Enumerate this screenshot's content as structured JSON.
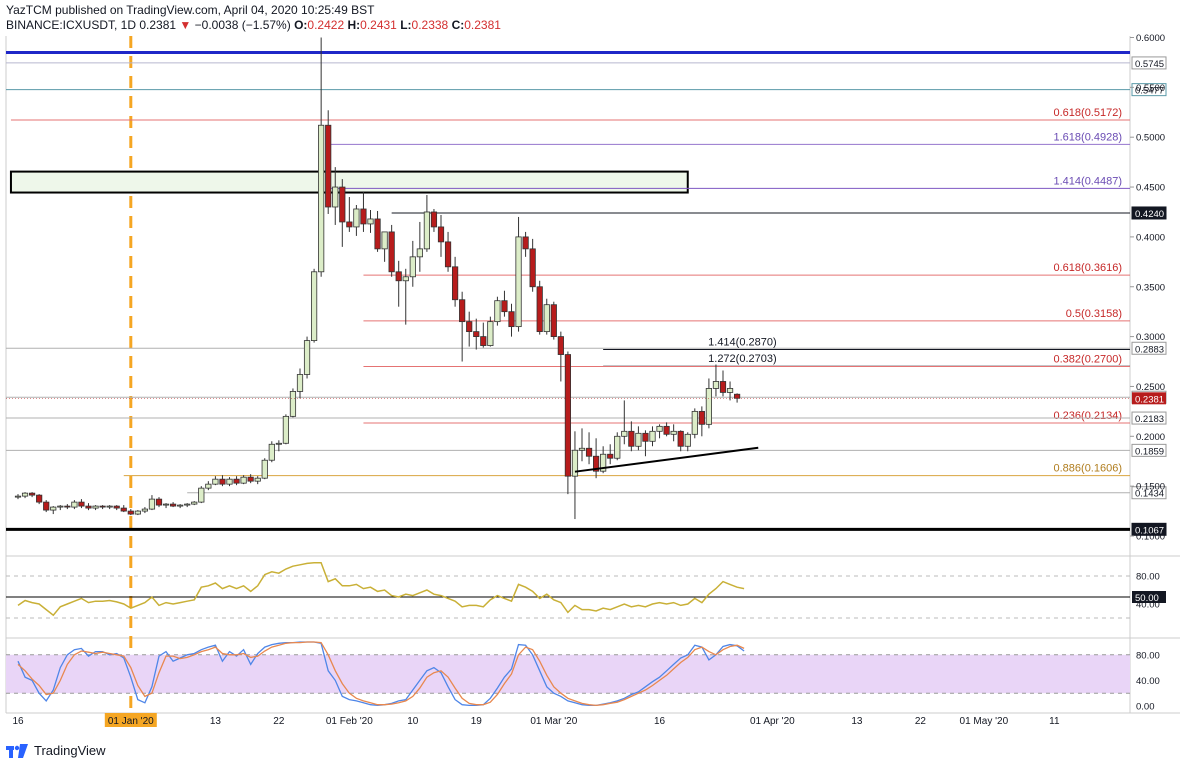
{
  "header": {
    "line1": "YazTCM published on TradingView.com, April 04, 2020 10:25:49 BST",
    "symbol": "BINANCE:ICXUSDT, 1D",
    "last": "0.2381",
    "change": "−0.0038 (−1.57%)",
    "o_label": "O:",
    "o": "0.2422",
    "h_label": "H:",
    "h": "0.2431",
    "l_label": "L:",
    "l": "0.2338",
    "c_label": "C:",
    "c": "0.2381"
  },
  "footer": {
    "brand": "TradingView"
  },
  "chart_data": {
    "type": "candlestick",
    "price_axis_ticks": [
      0.1,
      0.15,
      0.2,
      0.25,
      0.3,
      0.35,
      0.4,
      0.45,
      0.5,
      0.55,
      0.6
    ],
    "price_axis_labels": [
      "0.1000",
      "0.1500",
      "0.2000",
      "0.2500",
      "0.3000",
      "0.3500",
      "0.4000",
      "0.4500",
      "0.5000",
      "0.5500",
      "0.6000"
    ],
    "x_ticks": [
      {
        "label": "16",
        "day": 0
      },
      {
        "label": "01 Jan '20",
        "day": 16,
        "highlight": true
      },
      {
        "label": "13",
        "day": 28
      },
      {
        "label": "22",
        "day": 37
      },
      {
        "label": "01 Feb '20",
        "day": 47
      },
      {
        "label": "10",
        "day": 56
      },
      {
        "label": "19",
        "day": 65
      },
      {
        "label": "01 Mar '20",
        "day": 76
      },
      {
        "label": "16",
        "day": 91
      },
      {
        "label": "01 Apr '20",
        "day": 107
      },
      {
        "label": "13",
        "day": 119
      },
      {
        "label": "22",
        "day": 128
      },
      {
        "label": "01 May '20",
        "day": 137
      },
      {
        "label": "11",
        "day": 147
      }
    ],
    "candles": [
      [
        0.14,
        0.142,
        0.137,
        0.14
      ],
      [
        0.14,
        0.144,
        0.138,
        0.143
      ],
      [
        0.143,
        0.144,
        0.139,
        0.141
      ],
      [
        0.141,
        0.142,
        0.132,
        0.134
      ],
      [
        0.134,
        0.136,
        0.124,
        0.126
      ],
      [
        0.126,
        0.13,
        0.122,
        0.129
      ],
      [
        0.129,
        0.131,
        0.126,
        0.13
      ],
      [
        0.13,
        0.132,
        0.127,
        0.129
      ],
      [
        0.129,
        0.136,
        0.127,
        0.134
      ],
      [
        0.134,
        0.137,
        0.128,
        0.13
      ],
      [
        0.13,
        0.133,
        0.126,
        0.128
      ],
      [
        0.128,
        0.131,
        0.126,
        0.13
      ],
      [
        0.13,
        0.131,
        0.127,
        0.129
      ],
      [
        0.129,
        0.131,
        0.127,
        0.13
      ],
      [
        0.13,
        0.131,
        0.126,
        0.128
      ],
      [
        0.128,
        0.131,
        0.124,
        0.125
      ],
      [
        0.125,
        0.127,
        0.121,
        0.122
      ],
      [
        0.122,
        0.126,
        0.121,
        0.125
      ],
      [
        0.125,
        0.129,
        0.123,
        0.127
      ],
      [
        0.127,
        0.141,
        0.126,
        0.137
      ],
      [
        0.137,
        0.139,
        0.129,
        0.131
      ],
      [
        0.131,
        0.133,
        0.128,
        0.132
      ],
      [
        0.132,
        0.134,
        0.129,
        0.13
      ],
      [
        0.13,
        0.132,
        0.128,
        0.131
      ],
      [
        0.131,
        0.133,
        0.129,
        0.132
      ],
      [
        0.132,
        0.135,
        0.131,
        0.134
      ],
      [
        0.134,
        0.15,
        0.133,
        0.148
      ],
      [
        0.148,
        0.155,
        0.146,
        0.152
      ],
      [
        0.152,
        0.16,
        0.151,
        0.157
      ],
      [
        0.157,
        0.161,
        0.15,
        0.152
      ],
      [
        0.152,
        0.159,
        0.15,
        0.157
      ],
      [
        0.157,
        0.16,
        0.151,
        0.153
      ],
      [
        0.153,
        0.161,
        0.152,
        0.159
      ],
      [
        0.159,
        0.162,
        0.153,
        0.155
      ],
      [
        0.155,
        0.16,
        0.152,
        0.158
      ],
      [
        0.158,
        0.178,
        0.157,
        0.176
      ],
      [
        0.176,
        0.195,
        0.174,
        0.192
      ],
      [
        0.192,
        0.196,
        0.185,
        0.193
      ],
      [
        0.193,
        0.222,
        0.192,
        0.22
      ],
      [
        0.22,
        0.248,
        0.219,
        0.245
      ],
      [
        0.245,
        0.268,
        0.238,
        0.262
      ],
      [
        0.262,
        0.3,
        0.258,
        0.296
      ],
      [
        0.296,
        0.368,
        0.294,
        0.365
      ],
      [
        0.365,
        0.6,
        0.36,
        0.512
      ],
      [
        0.512,
        0.527,
        0.423,
        0.43
      ],
      [
        0.43,
        0.47,
        0.412,
        0.45
      ],
      [
        0.45,
        0.458,
        0.39,
        0.415
      ],
      [
        0.415,
        0.44,
        0.405,
        0.41
      ],
      [
        0.41,
        0.432,
        0.401,
        0.428
      ],
      [
        0.428,
        0.445,
        0.405,
        0.413
      ],
      [
        0.413,
        0.427,
        0.404,
        0.418
      ],
      [
        0.418,
        0.426,
        0.385,
        0.388
      ],
      [
        0.388,
        0.405,
        0.375,
        0.405
      ],
      [
        0.405,
        0.412,
        0.36,
        0.365
      ],
      [
        0.365,
        0.376,
        0.33,
        0.356
      ],
      [
        0.356,
        0.368,
        0.312,
        0.36
      ],
      [
        0.36,
        0.396,
        0.35,
        0.38
      ],
      [
        0.38,
        0.415,
        0.365,
        0.388
      ],
      [
        0.388,
        0.442,
        0.385,
        0.425
      ],
      [
        0.425,
        0.428,
        0.405,
        0.41
      ],
      [
        0.41,
        0.422,
        0.38,
        0.395
      ],
      [
        0.395,
        0.405,
        0.365,
        0.37
      ],
      [
        0.37,
        0.38,
        0.33,
        0.337
      ],
      [
        0.337,
        0.345,
        0.275,
        0.315
      ],
      [
        0.315,
        0.325,
        0.29,
        0.305
      ],
      [
        0.305,
        0.318,
        0.287,
        0.3
      ],
      [
        0.3,
        0.314,
        0.289,
        0.291
      ],
      [
        0.291,
        0.32,
        0.29,
        0.315
      ],
      [
        0.315,
        0.34,
        0.311,
        0.336
      ],
      [
        0.336,
        0.346,
        0.32,
        0.325
      ],
      [
        0.325,
        0.333,
        0.3,
        0.31
      ],
      [
        0.31,
        0.42,
        0.305,
        0.4
      ],
      [
        0.4,
        0.405,
        0.38,
        0.388
      ],
      [
        0.388,
        0.398,
        0.345,
        0.35
      ],
      [
        0.35,
        0.356,
        0.302,
        0.305
      ],
      [
        0.305,
        0.338,
        0.302,
        0.332
      ],
      [
        0.332,
        0.335,
        0.297,
        0.3
      ],
      [
        0.3,
        0.305,
        0.255,
        0.282
      ],
      [
        0.282,
        0.285,
        0.142,
        0.16
      ],
      [
        0.16,
        0.205,
        0.117,
        0.186
      ],
      [
        0.186,
        0.208,
        0.175,
        0.188
      ],
      [
        0.188,
        0.204,
        0.172,
        0.18
      ],
      [
        0.18,
        0.198,
        0.158,
        0.165
      ],
      [
        0.165,
        0.19,
        0.163,
        0.182
      ],
      [
        0.182,
        0.192,
        0.172,
        0.178
      ],
      [
        0.178,
        0.204,
        0.176,
        0.2
      ],
      [
        0.2,
        0.236,
        0.192,
        0.205
      ],
      [
        0.205,
        0.215,
        0.185,
        0.19
      ],
      [
        0.19,
        0.21,
        0.186,
        0.203
      ],
      [
        0.203,
        0.206,
        0.18,
        0.195
      ],
      [
        0.195,
        0.21,
        0.19,
        0.205
      ],
      [
        0.205,
        0.212,
        0.198,
        0.21
      ],
      [
        0.21,
        0.214,
        0.2,
        0.202
      ],
      [
        0.202,
        0.212,
        0.195,
        0.205
      ],
      [
        0.205,
        0.206,
        0.185,
        0.19
      ],
      [
        0.19,
        0.204,
        0.185,
        0.202
      ],
      [
        0.202,
        0.228,
        0.198,
        0.225
      ],
      [
        0.225,
        0.23,
        0.2,
        0.212
      ],
      [
        0.212,
        0.258,
        0.208,
        0.248
      ],
      [
        0.248,
        0.272,
        0.24,
        0.255
      ],
      [
        0.255,
        0.266,
        0.24,
        0.244
      ],
      [
        0.244,
        0.255,
        0.236,
        0.248
      ],
      [
        0.2422,
        0.2431,
        0.2338,
        0.2381
      ]
    ],
    "horizontal_lines": [
      {
        "price": 0.585,
        "color": "#1f27c8",
        "width": 3
      },
      {
        "price": 0.5745,
        "color": "#b7b7cf",
        "width": 1,
        "label": "0.5745",
        "tag_bg": "#ffffff",
        "tag_fg": "#131722",
        "tag_border": "#999999"
      },
      {
        "price": 0.5477,
        "color": "#5a9aa8",
        "width": 1,
        "label": "0.5477",
        "tag_bg": "#ffffff",
        "tag_fg": "#131722",
        "tag_border": "#5a9aa8"
      },
      {
        "price": 0.5172,
        "color": "#e57373",
        "width": 1,
        "from_day": -1,
        "text": "0.618(0.5172)",
        "text_color": "#c62828"
      },
      {
        "price": 0.4928,
        "color": "#9575cd",
        "width": 1,
        "from_day": 44,
        "text": "1.618(0.4928)",
        "text_color": "#6a4bb3"
      },
      {
        "price": 0.4487,
        "color": "#7e57c2",
        "width": 1,
        "from_day": 44,
        "text": "1.414(0.4487)",
        "text_color": "#6a4bb3"
      },
      {
        "price": 0.424,
        "color": "#131722",
        "width": 1,
        "from_day": 53,
        "label": "0.4240",
        "tag_bg": "#131722",
        "tag_fg": "#ffffff"
      },
      {
        "price": 0.3616,
        "color": "#e57373",
        "width": 1,
        "from_day": 49,
        "text": "0.618(0.3616)",
        "text_color": "#c62828"
      },
      {
        "price": 0.3158,
        "color": "#e57373",
        "width": 1,
        "from_day": 49,
        "text": "0.5(0.3158)",
        "text_color": "#c62828"
      },
      {
        "price": 0.2883,
        "color": "#b0b0b0",
        "width": 1,
        "label": "0.2883",
        "tag_bg": "#ffffff",
        "tag_fg": "#131722",
        "tag_border": "#999999"
      },
      {
        "price": 0.287,
        "color": "#131722",
        "width": 1,
        "from_day": 83,
        "text_left": "1.414(0.2870)"
      },
      {
        "price": 0.2703,
        "color": "#131722",
        "width": 1,
        "from_day": 83,
        "text_left": "1.272(0.2703)"
      },
      {
        "price": 0.27,
        "color": "#e57373",
        "width": 1,
        "from_day": 49,
        "text": "0.382(0.2700)",
        "text_color": "#c62828"
      },
      {
        "price": 0.2392,
        "color": "#b0b0b0",
        "width": 1,
        "label": "0.2392",
        "tag_bg": "#ffffff",
        "tag_fg": "#131722",
        "tag_border": "#999999"
      },
      {
        "price": 0.2134,
        "color": "#e57373",
        "width": 1,
        "from_day": 49,
        "text": "0.236(0.2134)",
        "text_color": "#c62828"
      },
      {
        "price": 0.2183,
        "color": "#b0b0b0",
        "width": 1,
        "label": "0.2183",
        "tag_bg": "#ffffff",
        "tag_fg": "#131722",
        "tag_border": "#999999"
      },
      {
        "price": 0.1859,
        "color": "#b0b0b0",
        "width": 1,
        "label": "0.1859",
        "tag_bg": "#ffffff",
        "tag_fg": "#131722",
        "tag_border": "#999999"
      },
      {
        "price": 0.1606,
        "color": "#d9a441",
        "width": 1,
        "from_day": 15,
        "text": "0.886(0.1606)",
        "text_color": "#b07d1e"
      },
      {
        "price": 0.1434,
        "color": "#b0b0b0",
        "width": 1,
        "from_day": 24,
        "label": "0.1434",
        "tag_bg": "#ffffff",
        "tag_fg": "#131722",
        "tag_border": "#999999"
      },
      {
        "price": 0.1067,
        "color": "#000000",
        "width": 3,
        "label": "0.1067",
        "tag_bg": "#131722",
        "tag_fg": "#ffffff"
      }
    ],
    "last_price_tag": {
      "price": 0.2381,
      "label": "0.2381",
      "color": "#b71c1c"
    },
    "resistance_box": {
      "from_day": -1,
      "to_day": 95,
      "top": 0.4655,
      "bottom": 0.4445,
      "fill": "#eef7ea",
      "border": "#000000"
    },
    "support_trendline": {
      "from_day": 79,
      "from_price": 0.1645,
      "to_day": 105,
      "to_price": 0.1885
    },
    "vertical_marker_day": 16,
    "rsi": {
      "ticks": [
        {
          "label": "80.00",
          "value": 80
        },
        {
          "label": "40.00",
          "value": 40
        }
      ],
      "level_label": "50.00",
      "level": 50,
      "values": [
        38,
        45,
        42,
        40,
        32,
        24,
        36,
        40,
        44,
        48,
        42,
        44,
        44,
        45,
        43,
        40,
        34,
        38,
        42,
        50,
        38,
        42,
        40,
        42,
        44,
        46,
        64,
        66,
        70,
        62,
        66,
        62,
        66,
        58,
        66,
        82,
        86,
        84,
        90,
        94,
        96,
        98,
        99,
        99,
        72,
        76,
        66,
        66,
        68,
        62,
        64,
        58,
        60,
        52,
        50,
        54,
        52,
        56,
        60,
        54,
        52,
        48,
        44,
        36,
        38,
        38,
        36,
        46,
        52,
        48,
        44,
        68,
        64,
        58,
        48,
        54,
        46,
        42,
        28,
        38,
        32,
        32,
        30,
        34,
        32,
        36,
        40,
        36,
        38,
        36,
        40,
        42,
        40,
        42,
        38,
        40,
        48,
        42,
        54,
        62,
        72,
        68,
        64,
        62
      ]
    },
    "stoch": {
      "ticks": [
        {
          "label": "80.00",
          "value": 80
        },
        {
          "label": "40.00",
          "value": 40
        },
        {
          "label": "0.00",
          "value": 0
        }
      ],
      "k": [
        70,
        45,
        40,
        20,
        8,
        25,
        60,
        80,
        88,
        90,
        78,
        85,
        85,
        80,
        82,
        75,
        45,
        10,
        5,
        30,
        78,
        85,
        70,
        75,
        80,
        82,
        88,
        92,
        95,
        70,
        85,
        78,
        88,
        65,
        82,
        92,
        96,
        98,
        99,
        99,
        100,
        100,
        100,
        98,
        55,
        40,
        15,
        10,
        8,
        5,
        2,
        1,
        2,
        4,
        8,
        10,
        25,
        40,
        55,
        60,
        52,
        30,
        10,
        2,
        1,
        1,
        2,
        12,
        28,
        45,
        58,
        96,
        95,
        80,
        55,
        30,
        20,
        15,
        8,
        5,
        2,
        1,
        1,
        3,
        5,
        8,
        12,
        18,
        22,
        30,
        38,
        45,
        55,
        65,
        75,
        80,
        95,
        92,
        72,
        80,
        93,
        96,
        94,
        86
      ],
      "d": [
        65,
        55,
        42,
        32,
        18,
        20,
        40,
        65,
        80,
        86,
        84,
        82,
        84,
        82,
        80,
        78,
        60,
        32,
        15,
        20,
        52,
        78,
        78,
        74,
        76,
        80,
        85,
        88,
        92,
        82,
        80,
        80,
        82,
        76,
        78,
        86,
        92,
        95,
        98,
        99,
        99,
        100,
        100,
        99,
        80,
        55,
        35,
        20,
        12,
        8,
        5,
        2,
        2,
        3,
        5,
        8,
        15,
        28,
        45,
        52,
        55,
        45,
        28,
        12,
        4,
        2,
        2,
        6,
        18,
        35,
        50,
        80,
        92,
        88,
        70,
        48,
        30,
        20,
        12,
        8,
        4,
        2,
        1,
        2,
        4,
        6,
        10,
        15,
        20,
        25,
        32,
        40,
        48,
        58,
        68,
        76,
        88,
        92,
        85,
        80,
        88,
        93,
        95,
        90
      ]
    }
  }
}
